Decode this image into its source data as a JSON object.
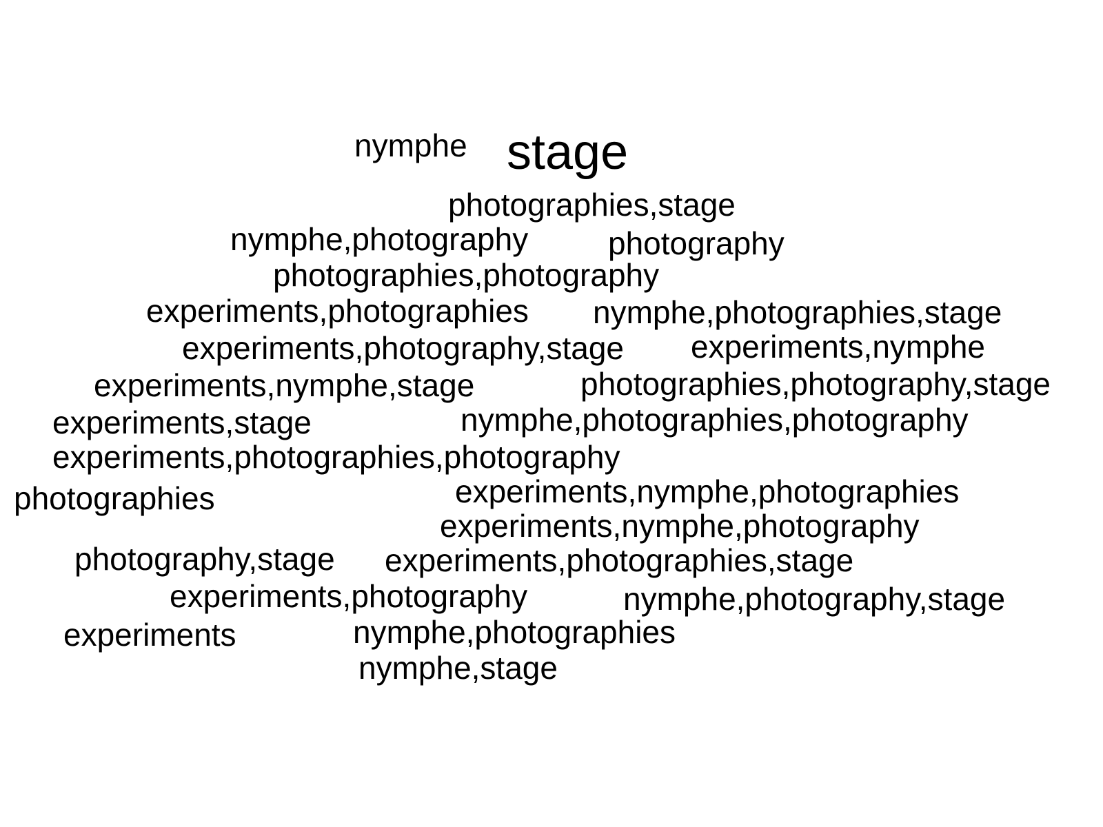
{
  "words": [
    "nymphe",
    "stage",
    "photographies,stage",
    "nymphe,photography",
    "photography",
    "photographies,photography",
    "experiments,photographies",
    "nymphe,photographies,stage",
    "experiments,photography,stage",
    "experiments,nymphe",
    "experiments,nymphe,stage",
    "photographies,photography,stage",
    "experiments,stage",
    "nymphe,photographies,photography",
    "experiments,photographies,photography",
    "photographies",
    "experiments,nymphe,photographies",
    "experiments,nymphe,photography",
    "photography,stage",
    "experiments,photographies,stage",
    "experiments,photography",
    "nymphe,photography,stage",
    "experiments",
    "nymphe,photographies",
    "nymphe,stage"
  ]
}
